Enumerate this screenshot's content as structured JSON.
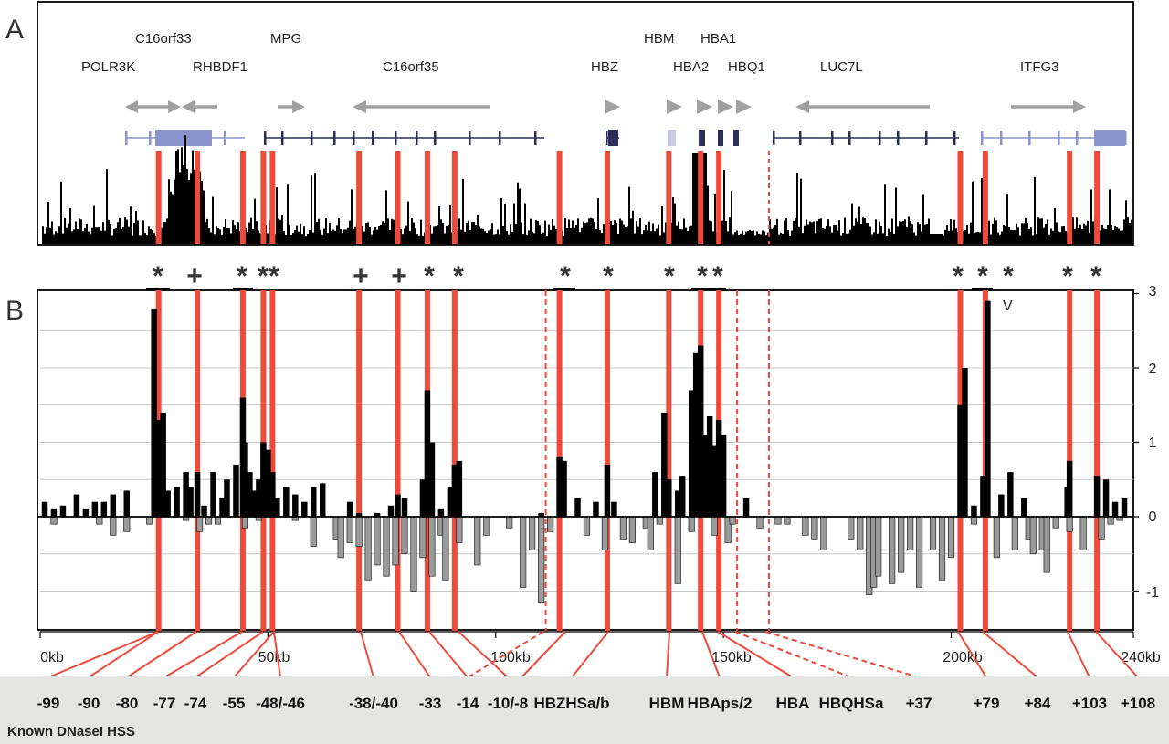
{
  "panels": {
    "a": "A",
    "b": "B"
  },
  "genes": [
    {
      "name": "POLR3K",
      "pos": 17
    },
    {
      "name": "C16orf33",
      "pos": 29
    },
    {
      "name": "RHBDF1",
      "pos": 42
    },
    {
      "name": "MPG",
      "pos": 55
    },
    {
      "name": "C16orf35",
      "pos": 83
    },
    {
      "name": "HBZ",
      "pos": 125
    },
    {
      "name": "HBM",
      "pos": 138
    },
    {
      "name": "HBA2",
      "pos": 144
    },
    {
      "name": "HBA1",
      "pos": 150
    },
    {
      "name": "HBQ1",
      "pos": 156
    },
    {
      "name": "LUC7L",
      "pos": 178
    },
    {
      "name": "ITFG3",
      "pos": 225
    }
  ],
  "axis": {
    "ticks": [
      "0kb",
      "50kb",
      "100kb",
      "150kb",
      "200kb",
      "240kb"
    ],
    "right_ticks": [
      "3",
      "2",
      "1",
      "0",
      "-1"
    ]
  },
  "marks": [
    "*",
    "+",
    "*",
    "*",
    "*",
    "+",
    "+",
    "*",
    "*",
    "*",
    "*",
    "*",
    "*",
    "*",
    "*",
    "*",
    "*",
    "*",
    "*"
  ],
  "annotation_v": "V",
  "hss_labels": [
    "-99",
    "-90",
    "-80",
    "-77",
    "-74",
    "-55",
    "-48/-46",
    "-38/-40",
    "-33",
    "-14",
    "-10/-8",
    "HBZHSa/b",
    "HBM",
    "HBAps/2",
    "HBA",
    "HBQHSa",
    "+37",
    "+79",
    "+84",
    "+103",
    "+108"
  ],
  "footer_caption": "Known DNaseI HSS",
  "colors": {
    "highlight": "#f04a3a",
    "gene_dark": "#2b2f57",
    "gene_light": "#8b93cc",
    "arrow": "#a0a0a0",
    "pos_bar": "#000000",
    "neg_bar": "#9a9a9a",
    "footer_bg": "#e4e4e2"
  },
  "chart_data": {
    "type": "bar",
    "xlabel": "",
    "ylabel": "",
    "xlim": [
      0,
      240
    ],
    "ylim": [
      -1.5,
      3
    ],
    "x_unit": "kb",
    "highlight_positions_kb": [
      26,
      34.5,
      44.5,
      49,
      51,
      70,
      78.5,
      85,
      91,
      114,
      124.5,
      138,
      145,
      149,
      202,
      207.5,
      226,
      232
    ],
    "dashed_positions_kb": [
      111,
      153,
      160
    ],
    "series": [
      {
        "values_kb": [
          [
            1,
            0.2
          ],
          [
            3,
            0.1
          ],
          [
            5,
            0.15
          ],
          [
            8,
            0.3
          ],
          [
            10,
            0.1
          ],
          [
            12,
            0.2
          ],
          [
            14,
            0.2
          ],
          [
            16,
            0.3
          ],
          [
            19,
            0.35
          ],
          [
            25,
            2.8
          ],
          [
            26,
            1.3
          ],
          [
            27,
            1.4
          ],
          [
            28,
            0.35
          ],
          [
            30,
            0.4
          ],
          [
            32,
            0.6
          ],
          [
            33,
            0.4
          ],
          [
            34.5,
            0.6
          ],
          [
            36,
            0.15
          ],
          [
            38,
            0.6
          ],
          [
            40,
            0.25
          ],
          [
            41,
            0.5
          ],
          [
            43,
            0.7
          ],
          [
            44.5,
            1.6
          ],
          [
            45,
            1.0
          ],
          [
            46,
            0.6
          ],
          [
            47,
            0.35
          ],
          [
            48,
            0.5
          ],
          [
            49,
            1.0
          ],
          [
            50,
            0.9
          ],
          [
            51,
            0.6
          ],
          [
            52,
            0.25
          ],
          [
            54,
            0.4
          ],
          [
            56,
            0.3
          ],
          [
            58,
            0.2
          ],
          [
            60,
            0.4
          ],
          [
            62,
            0.45
          ],
          [
            68,
            0.2
          ],
          [
            70,
            0.05
          ],
          [
            74,
            0.05
          ],
          [
            77,
            0.15
          ],
          [
            78.5,
            0.3
          ],
          [
            80,
            0.25
          ],
          [
            84,
            0.5
          ],
          [
            85,
            1.7
          ],
          [
            86,
            1.0
          ],
          [
            88,
            0.1
          ],
          [
            90,
            0.4
          ],
          [
            91,
            0.7
          ],
          [
            92,
            0.75
          ],
          [
            110,
            0.05
          ],
          [
            114,
            0.8
          ],
          [
            115,
            0.75
          ],
          [
            118,
            0.25
          ],
          [
            122,
            0.2
          ],
          [
            124.5,
            0.7
          ],
          [
            126,
            0.2
          ],
          [
            135,
            0.6
          ],
          [
            137,
            1.4
          ],
          [
            138,
            0.5
          ],
          [
            140,
            0.35
          ],
          [
            141,
            0.55
          ],
          [
            143,
            1.7
          ],
          [
            144,
            2.2
          ],
          [
            145,
            2.3
          ],
          [
            146,
            1.1
          ],
          [
            147,
            1.35
          ],
          [
            148,
            0.95
          ],
          [
            149,
            1.3
          ],
          [
            150,
            1.1
          ],
          [
            155,
            0.25
          ],
          [
            202,
            1.5
          ],
          [
            203,
            2.0
          ],
          [
            205,
            0.15
          ],
          [
            207,
            0.55
          ],
          [
            208,
            2.9
          ],
          [
            211,
            0.3
          ],
          [
            213,
            0.6
          ],
          [
            216,
            0.25
          ],
          [
            225.5,
            0.4
          ],
          [
            226,
            0.75
          ],
          [
            232,
            0.55
          ],
          [
            234,
            0.5
          ],
          [
            236,
            0.2
          ],
          [
            238,
            0.25
          ]
        ]
      },
      {
        "values_kb": [
          [
            3,
            -0.1
          ],
          [
            13,
            -0.1
          ],
          [
            16,
            -0.25
          ],
          [
            19,
            -0.2
          ],
          [
            24,
            -0.1
          ],
          [
            32,
            -0.05
          ],
          [
            35,
            -0.2
          ],
          [
            37,
            -0.1
          ],
          [
            39,
            -0.1
          ],
          [
            45,
            -0.15
          ],
          [
            48,
            -0.05
          ],
          [
            56,
            -0.05
          ],
          [
            60,
            -0.4
          ],
          [
            65,
            -0.3
          ],
          [
            66,
            -0.55
          ],
          [
            68,
            -0.35
          ],
          [
            70,
            -0.4
          ],
          [
            72,
            -0.85
          ],
          [
            74,
            -0.65
          ],
          [
            76,
            -0.8
          ],
          [
            78,
            -0.65
          ],
          [
            80,
            -0.5
          ],
          [
            82,
            -1.0
          ],
          [
            84,
            -0.55
          ],
          [
            86,
            -0.8
          ],
          [
            88,
            -0.25
          ],
          [
            89,
            -0.85
          ],
          [
            92,
            -0.35
          ],
          [
            96,
            -0.65
          ],
          [
            98,
            -0.25
          ],
          [
            103,
            -0.15
          ],
          [
            106,
            -0.95
          ],
          [
            108,
            -0.45
          ],
          [
            110,
            -1.15
          ],
          [
            112,
            -0.2
          ],
          [
            120,
            -0.25
          ],
          [
            124,
            -0.45
          ],
          [
            128,
            -0.3
          ],
          [
            130,
            -0.35
          ],
          [
            133,
            -0.15
          ],
          [
            134,
            -0.45
          ],
          [
            136,
            -0.1
          ],
          [
            140,
            -0.9
          ],
          [
            143,
            -0.2
          ],
          [
            148,
            -0.25
          ],
          [
            151,
            -0.35
          ],
          [
            152,
            -0.1
          ],
          [
            158,
            -0.15
          ],
          [
            162,
            -0.1
          ],
          [
            164,
            -0.1
          ],
          [
            168,
            -0.25
          ],
          [
            170,
            -0.3
          ],
          [
            172,
            -0.45
          ],
          [
            178,
            -0.3
          ],
          [
            180,
            -0.45
          ],
          [
            182,
            -1.05
          ],
          [
            183,
            -0.95
          ],
          [
            184,
            -0.8
          ],
          [
            187,
            -0.9
          ],
          [
            189,
            -0.75
          ],
          [
            191,
            -0.45
          ],
          [
            193,
            -0.95
          ],
          [
            196,
            -0.45
          ],
          [
            198,
            -0.85
          ],
          [
            200,
            -0.55
          ],
          [
            205,
            -0.1
          ],
          [
            210,
            -0.55
          ],
          [
            214,
            -0.45
          ],
          [
            217,
            -0.3
          ],
          [
            218,
            -0.5
          ],
          [
            220,
            -0.45
          ],
          [
            221,
            -0.75
          ],
          [
            223,
            -0.15
          ],
          [
            226,
            -0.2
          ],
          [
            229,
            -0.45
          ],
          [
            233,
            -0.3
          ],
          [
            235,
            -0.1
          ],
          [
            237,
            -0.05
          ]
        ]
      }
    ]
  }
}
